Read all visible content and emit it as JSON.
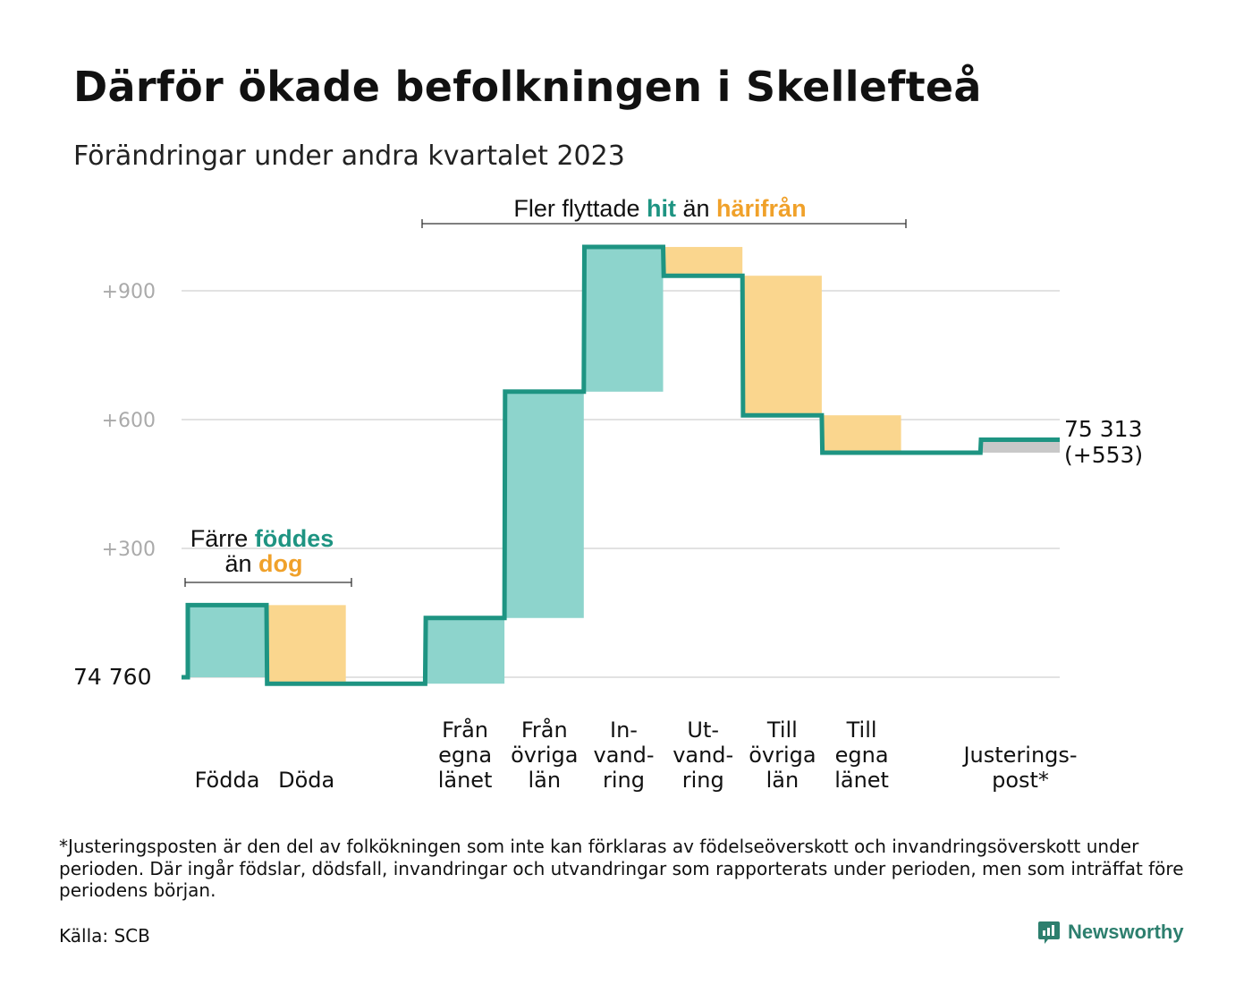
{
  "title": "Därför ökade befolkningen i Skellefteå",
  "subtitle": "Förändringar under andra kvartalet 2023",
  "footnote": "*Justeringsposten är den del av folkökningen som inte kan förklaras av födelseöverskott och invandringsöverskott under perioden. Där ingår födslar, dödsfall, invandringar och utvandringar som rapporterats under perioden, men som inträffat före periodens början.",
  "source": "Källa: SCB",
  "brand": "Newsworthy",
  "colors": {
    "increase": "#8dd4cc",
    "decrease": "#fad68e",
    "adjustment": "#c8c8c8",
    "line": "#1e9482",
    "hit_text": "#1e9482",
    "harifran_text": "#f0a12a",
    "grid": "#e2e2e2",
    "tick_text": "#aaaaaa"
  },
  "annotations": {
    "births_deaths": {
      "line1_prefix": "Färre ",
      "line1_highlight": "föddes",
      "line2_prefix": "än ",
      "line2_highlight": "dog"
    },
    "migration": {
      "prefix": "Fler flyttade ",
      "highlight1": "hit",
      "middle": " än ",
      "highlight2": "härifrån"
    }
  },
  "chart_data": {
    "type": "waterfall",
    "title": "Därför ökade befolkningen i Skellefteå",
    "subtitle": "Förändringar under andra kvartalet 2023",
    "start_value": 74760,
    "start_label": "74  760",
    "end_value": 75313,
    "end_label": "75 313",
    "end_change_label": "(+553)",
    "y_ticks": [
      {
        "value": 300,
        "label": "+300"
      },
      {
        "value": 600,
        "label": "+600"
      },
      {
        "value": 900,
        "label": "+900"
      }
    ],
    "ylim": [
      -20,
      1000
    ],
    "grid": true,
    "steps": [
      {
        "name": "Födda",
        "label_lines": [
          "Födda"
        ],
        "change": 168,
        "kind": "increase"
      },
      {
        "name": "Döda",
        "label_lines": [
          "Döda"
        ],
        "change": -183,
        "kind": "decrease"
      },
      {
        "name": "",
        "label_lines": [],
        "change": 0,
        "kind": "gap"
      },
      {
        "name": "Från egna länet",
        "label_lines": [
          "Från",
          "egna",
          "länet"
        ],
        "change": 153,
        "kind": "increase"
      },
      {
        "name": "Från övriga län",
        "label_lines": [
          "Från",
          "övriga",
          "län"
        ],
        "change": 527,
        "kind": "increase"
      },
      {
        "name": "Invandring",
        "label_lines": [
          "In-",
          "vand-",
          "ring"
        ],
        "change": 337,
        "kind": "increase"
      },
      {
        "name": "Utvandring",
        "label_lines": [
          "Ut-",
          "vand-",
          "ring"
        ],
        "change": -67,
        "kind": "decrease"
      },
      {
        "name": "Till övriga län",
        "label_lines": [
          "Till",
          "övriga",
          "län"
        ],
        "change": -325,
        "kind": "decrease"
      },
      {
        "name": "Till egna länet",
        "label_lines": [
          "Till",
          "egna",
          "länet"
        ],
        "change": -87,
        "kind": "decrease"
      },
      {
        "name": "",
        "label_lines": [],
        "change": 0,
        "kind": "gap"
      },
      {
        "name": "Justeringspost*",
        "label_lines": [
          "Justerings-",
          "post*"
        ],
        "change": 30,
        "kind": "adjustment"
      }
    ]
  }
}
